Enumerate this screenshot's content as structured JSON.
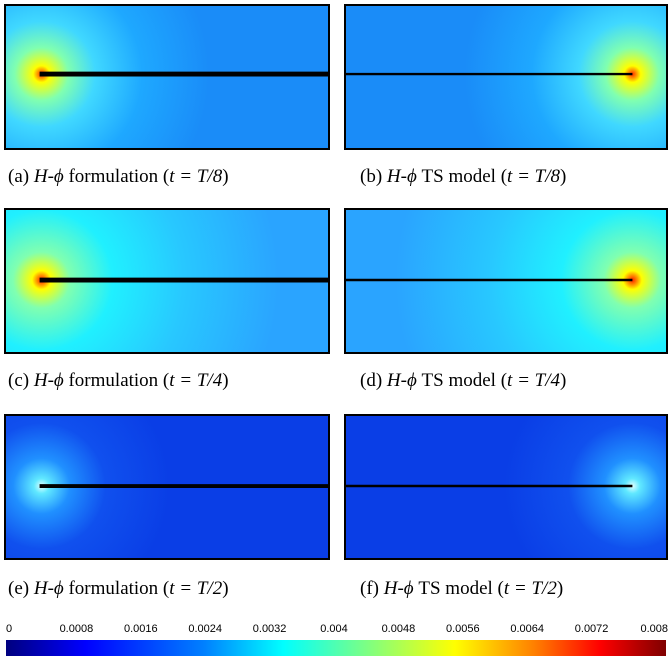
{
  "captions": {
    "a": {
      "prefix": "(a) ",
      "math": "H-ϕ",
      "mid": " formulation (",
      "t": "t = T/8",
      "suffix": ")"
    },
    "b": {
      "prefix": "(b) ",
      "math": "H-ϕ",
      "mid": " TS model (",
      "t": "t = T/8",
      "suffix": ")"
    },
    "c": {
      "prefix": "(c) ",
      "math": "H-ϕ",
      "mid": " formulation (",
      "t": "t = T/4",
      "suffix": ")"
    },
    "d": {
      "prefix": "(d) ",
      "math": "H-ϕ",
      "mid": " TS model (",
      "t": "t = T/4",
      "suffix": ")"
    },
    "e": {
      "prefix": "(e) ",
      "math": "H-ϕ",
      "mid": " formulation (",
      "t": "t = T/2",
      "suffix": ")"
    },
    "f": {
      "prefix": "(f) ",
      "math": "H-ϕ",
      "mid": " TS model (",
      "t": "t = T/2",
      "suffix": ")"
    }
  },
  "colorbar": {
    "ticks": [
      "0",
      "0.0008",
      "0.0016",
      "0.0024",
      "0.0032",
      "0.004",
      "0.0048",
      "0.0056",
      "0.0064",
      "0.0072",
      "0.008"
    ]
  }
}
